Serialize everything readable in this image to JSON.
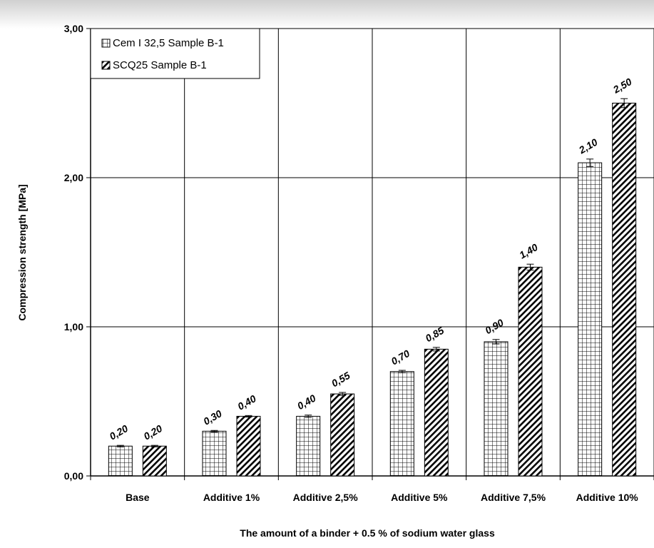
{
  "chart_data": {
    "type": "bar",
    "title": "",
    "xlabel": "The amount of a binder + 0.5 % of sodium water glass",
    "ylabel": "Compression strength [MPa]",
    "ylim": [
      0,
      3
    ],
    "yticks": [
      0,
      1,
      2,
      3
    ],
    "ytick_labels": [
      "0,00",
      "1,00",
      "2,00",
      "3,00"
    ],
    "grid": true,
    "legend_position": "top-left",
    "categories": [
      "Base",
      "Additive 1%",
      "Additive 2,5%",
      "Additive 5%",
      "Additive 7,5%",
      "Additive 10%"
    ],
    "series": [
      {
        "name": "Cem I 32,5 Sample B-1",
        "pattern": "grid",
        "values": [
          0.2,
          0.3,
          0.4,
          0.7,
          0.9,
          2.1
        ],
        "labels": [
          "0,20",
          "0,30",
          "0,40",
          "0,70",
          "0,90",
          "2,10"
        ],
        "errors": [
          0.005,
          0.005,
          0.008,
          0.008,
          0.015,
          0.025
        ]
      },
      {
        "name": "SCQ25 Sample B-1",
        "pattern": "diagonal-hatch",
        "values": [
          0.2,
          0.4,
          0.55,
          0.85,
          1.4,
          2.5
        ],
        "labels": [
          "0,20",
          "0,40",
          "0,55",
          "0,85",
          "1,40",
          "2,50"
        ],
        "errors": [
          0.005,
          0.005,
          0.01,
          0.012,
          0.02,
          0.03
        ]
      }
    ]
  }
}
